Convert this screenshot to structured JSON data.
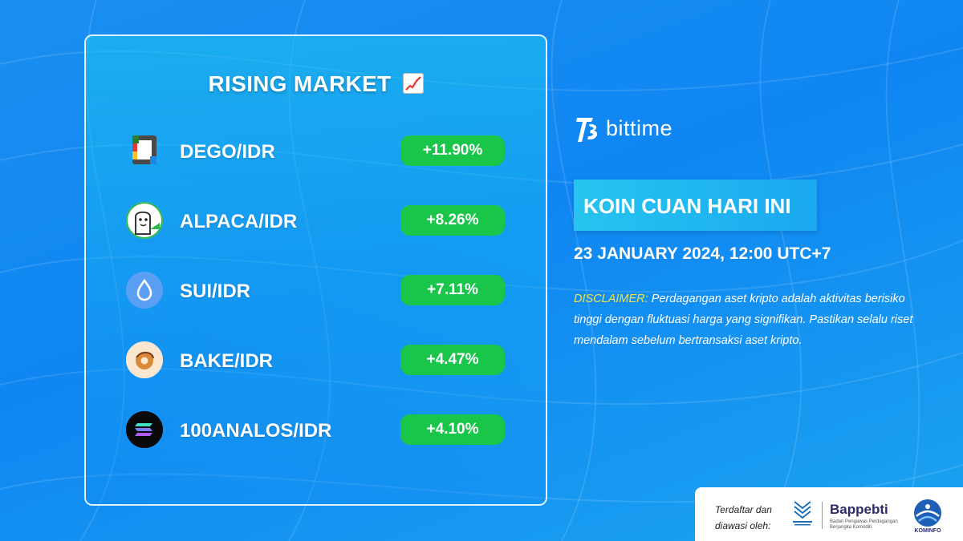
{
  "market_card": {
    "title": "RISING MARKET",
    "title_icon": "chart-increasing-icon",
    "coins": [
      {
        "pair": "DEGO/IDR",
        "change": "+11.90%",
        "icon": "dego-logo-icon"
      },
      {
        "pair": "ALPACA/IDR",
        "change": "+8.26%",
        "icon": "alpaca-logo-icon"
      },
      {
        "pair": "SUI/IDR",
        "change": "+7.11%",
        "icon": "sui-logo-icon"
      },
      {
        "pair": "BAKE/IDR",
        "change": "+4.47%",
        "icon": "bake-logo-icon"
      },
      {
        "pair": "100ANALOS/IDR",
        "change": "+4.10%",
        "icon": "analos-logo-icon"
      }
    ]
  },
  "brand": {
    "name": "bittime",
    "logo_icon": "bittime-logo-icon"
  },
  "headline": "KOIN CUAN HARI INI",
  "date": "23 JANUARY 2024, 12:00 UTC+7",
  "disclaimer": {
    "label": "DISCLAIMER:",
    "text": " Perdagangan aset kripto adalah aktivitas berisiko tinggi dengan fluktuasi harga yang signifikan. Pastikan selalu riset mendalam sebelum bertransaksi aset kripto."
  },
  "footer": {
    "registered_line1": "Terdaftar dan",
    "registered_line2": "diawasi oleh:",
    "bappebti": "Bappebti",
    "bappebti_sub": "Badan Pengawas Perdagangan Berjangka Komoditi",
    "kominfo": "KOMINFO"
  },
  "colors": {
    "background": "#1a8ff0",
    "pill_green": "#19c64a",
    "disclaimer_label": "#f4e04a",
    "text": "#ffffff"
  }
}
